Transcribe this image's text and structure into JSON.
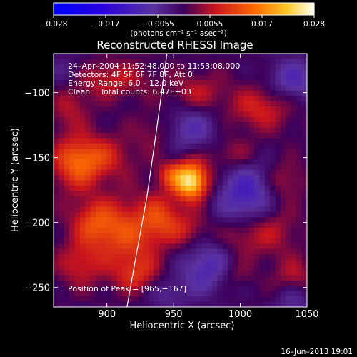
{
  "chart_data": {
    "type": "heatmap",
    "title": "Reconstructed RHESSI Image",
    "xlabel": "Heliocentric X (arcsec)",
    "ylabel": "Heliocentric Y (arcsec)",
    "xlim": [
      860,
      1050
    ],
    "ylim": [
      -265,
      -70
    ],
    "x_ticks": [
      900,
      950,
      1000,
      1050
    ],
    "y_ticks": [
      -100,
      -150,
      -200,
      -250
    ],
    "colorbar": {
      "range": [
        -0.028,
        0.028
      ],
      "ticks": [
        "−0.028",
        "−0.017",
        "−0.0055",
        "0.0055",
        "0.017",
        "0.028"
      ],
      "unit_label": "(photons cm⁻² s⁻¹ asec⁻²)"
    },
    "annotations": [
      "24–Apr–2004 11:52:48.000 to 11:53:08.000",
      "Detectors: 4F 5F 6F 7F 8F, Att 0",
      "Energy Range: 6.0 – 12.0 keV",
      "Clean    Total counts: 6.47E+03"
    ],
    "peak_label": "Position of Peak = [965,−167]",
    "peak": {
      "x": 965,
      "y": -167,
      "value": 0.028
    },
    "blobs": [
      {
        "x": 963,
        "y": -168,
        "sx": 9,
        "sy": 10,
        "a": 0.026
      },
      {
        "x": 947,
        "y": -163,
        "sx": 7,
        "sy": 7,
        "a": 0.008
      },
      {
        "x": 890,
        "y": -150,
        "sx": 18,
        "sy": 12,
        "a": 0.01
      },
      {
        "x": 876,
        "y": -158,
        "sx": 12,
        "sy": 14,
        "a": 0.008
      },
      {
        "x": 915,
        "y": -208,
        "sx": 18,
        "sy": 18,
        "a": 0.011
      },
      {
        "x": 890,
        "y": -200,
        "sx": 12,
        "sy": 12,
        "a": 0.009
      },
      {
        "x": 940,
        "y": -195,
        "sx": 10,
        "sy": 12,
        "a": 0.008
      },
      {
        "x": 960,
        "y": -205,
        "sx": 12,
        "sy": 10,
        "a": 0.006
      },
      {
        "x": 1000,
        "y": -210,
        "sx": 12,
        "sy": 12,
        "a": 0.006
      },
      {
        "x": 1022,
        "y": -205,
        "sx": 14,
        "sy": 14,
        "a": 0.007
      },
      {
        "x": 1032,
        "y": -168,
        "sx": 11,
        "sy": 11,
        "a": 0.006
      },
      {
        "x": 995,
        "y": -148,
        "sx": 13,
        "sy": 9,
        "a": 0.006
      },
      {
        "x": 1015,
        "y": -112,
        "sx": 16,
        "sy": 12,
        "a": 0.008
      },
      {
        "x": 968,
        "y": -100,
        "sx": 14,
        "sy": 10,
        "a": 0.006
      },
      {
        "x": 900,
        "y": -90,
        "sx": 22,
        "sy": 10,
        "a": 0.007
      },
      {
        "x": 872,
        "y": -110,
        "sx": 10,
        "sy": 14,
        "a": 0.006
      },
      {
        "x": 922,
        "y": -240,
        "sx": 12,
        "sy": 10,
        "a": 0.008
      },
      {
        "x": 880,
        "y": -232,
        "sx": 12,
        "sy": 12,
        "a": 0.007
      },
      {
        "x": 1040,
        "y": -242,
        "sx": 10,
        "sy": 10,
        "a": 0.006
      },
      {
        "x": 995,
        "y": -240,
        "sx": 10,
        "sy": 8,
        "a": 0.004
      },
      {
        "x": 935,
        "y": -130,
        "sx": 10,
        "sy": 10,
        "a": 0.004
      },
      {
        "x": 963,
        "y": -128,
        "sx": 14,
        "sy": 12,
        "a": -0.008
      },
      {
        "x": 1005,
        "y": -180,
        "sx": 16,
        "sy": 20,
        "a": -0.012
      },
      {
        "x": 975,
        "y": -235,
        "sx": 14,
        "sy": 14,
        "a": -0.01
      },
      {
        "x": 1040,
        "y": -90,
        "sx": 14,
        "sy": 12,
        "a": -0.009
      },
      {
        "x": 870,
        "y": -88,
        "sx": 12,
        "sy": 12,
        "a": -0.006
      },
      {
        "x": 1040,
        "y": -260,
        "sx": 10,
        "sy": 10,
        "a": -0.006
      },
      {
        "x": 945,
        "y": -255,
        "sx": 12,
        "sy": 10,
        "a": -0.005
      }
    ],
    "limb": [
      [
        945,
        -70
      ],
      [
        937,
        -130
      ],
      [
        930,
        -180
      ],
      [
        922,
        -225
      ],
      [
        915,
        -265
      ]
    ],
    "footer_date": "16–Jun–2013 19:01"
  }
}
